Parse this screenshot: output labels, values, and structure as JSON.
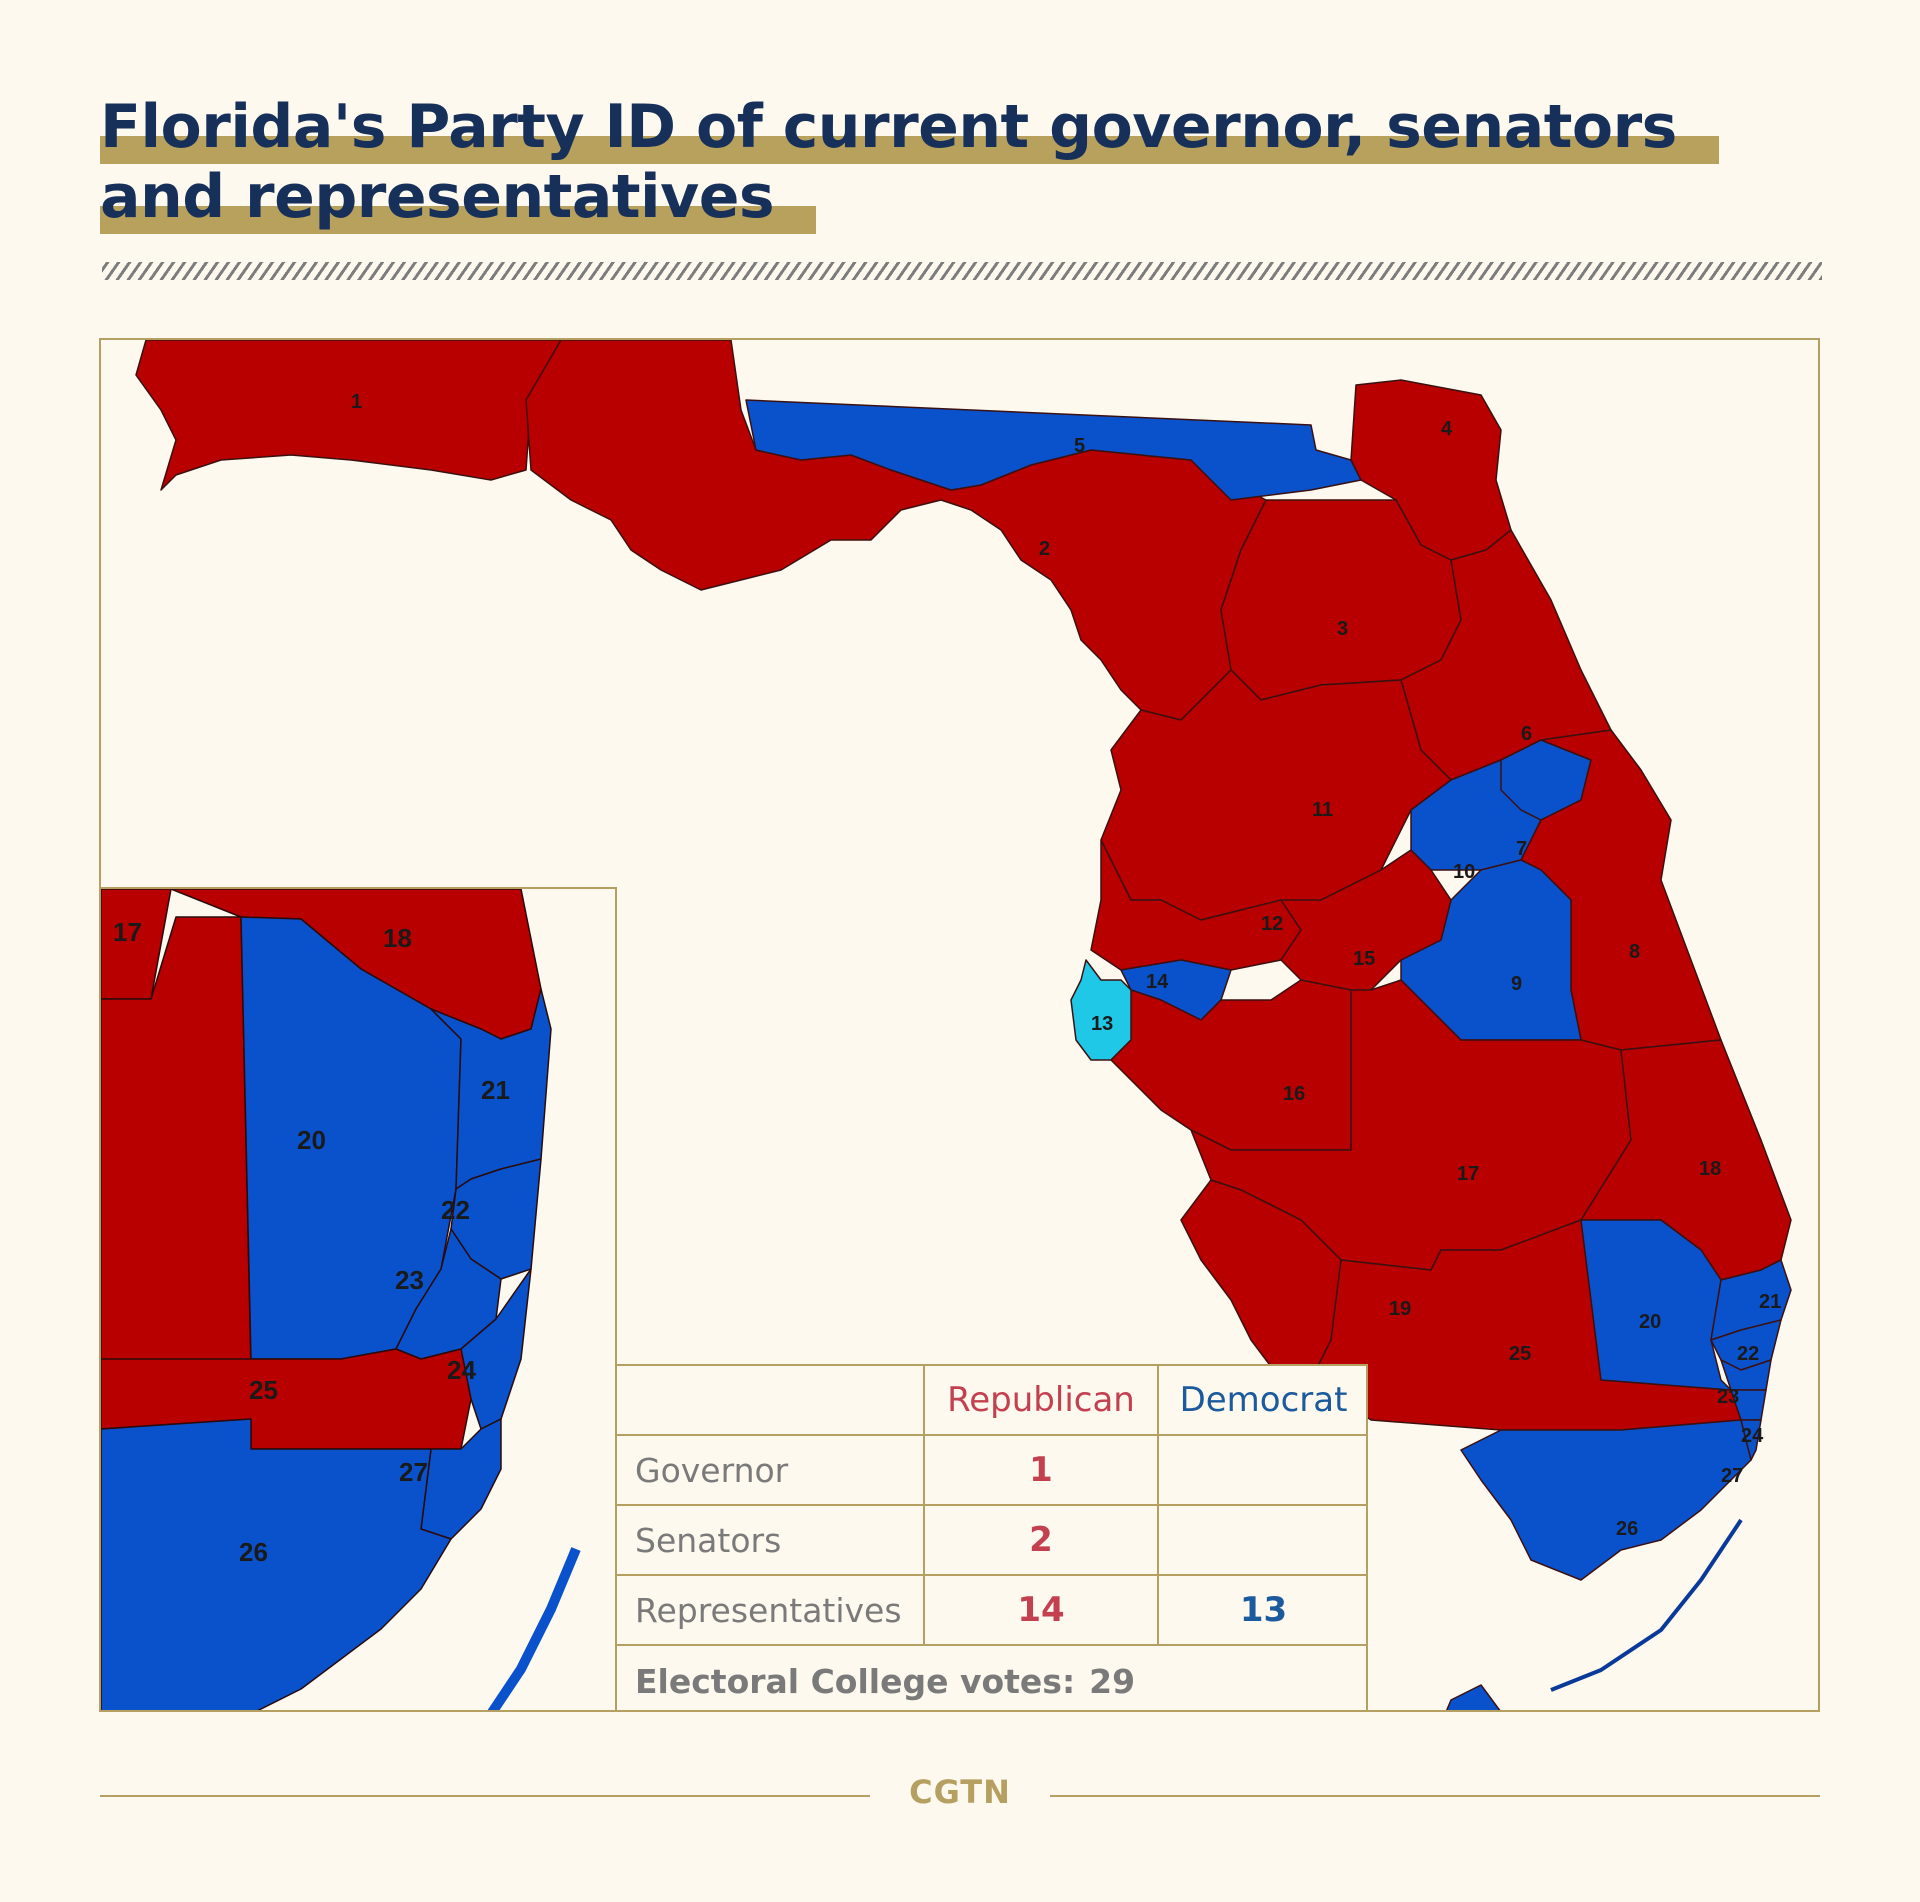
{
  "title": {
    "line1": "Florida's Party ID of current governor, senators",
    "line2": "and representatives"
  },
  "colors": {
    "republican": "#b80000",
    "democrat": "#0a52cc",
    "tossup": "#1ec8e6",
    "accent": "#b5a062",
    "title": "#16305a"
  },
  "map": {
    "districts": [
      {
        "id": "1",
        "party": "Republican"
      },
      {
        "id": "2",
        "party": "Republican"
      },
      {
        "id": "3",
        "party": "Republican"
      },
      {
        "id": "4",
        "party": "Republican"
      },
      {
        "id": "5",
        "party": "Democrat"
      },
      {
        "id": "6",
        "party": "Republican"
      },
      {
        "id": "7",
        "party": "Democrat"
      },
      {
        "id": "8",
        "party": "Republican"
      },
      {
        "id": "9",
        "party": "Democrat"
      },
      {
        "id": "10",
        "party": "Democrat"
      },
      {
        "id": "11",
        "party": "Republican"
      },
      {
        "id": "12",
        "party": "Republican"
      },
      {
        "id": "13",
        "party": "Democrat"
      },
      {
        "id": "14",
        "party": "Democrat"
      },
      {
        "id": "15",
        "party": "Republican"
      },
      {
        "id": "16",
        "party": "Republican"
      },
      {
        "id": "17",
        "party": "Republican"
      },
      {
        "id": "18",
        "party": "Republican"
      },
      {
        "id": "19",
        "party": "Republican"
      },
      {
        "id": "20",
        "party": "Democrat"
      },
      {
        "id": "21",
        "party": "Democrat"
      },
      {
        "id": "22",
        "party": "Democrat"
      },
      {
        "id": "23",
        "party": "Democrat"
      },
      {
        "id": "24",
        "party": "Democrat"
      },
      {
        "id": "25",
        "party": "Republican"
      },
      {
        "id": "26",
        "party": "Democrat"
      },
      {
        "id": "27",
        "party": "Democrat"
      }
    ],
    "inset_labels": [
      "17",
      "18",
      "20",
      "21",
      "22",
      "23",
      "24",
      "25",
      "26",
      "27"
    ]
  },
  "table": {
    "headers": {
      "republican": "Republican",
      "democrat": "Democrat"
    },
    "rows": [
      {
        "label": "Governor",
        "republican": "1",
        "democrat": ""
      },
      {
        "label": "Senators",
        "republican": "2",
        "democrat": ""
      },
      {
        "label": "Representatives",
        "republican": "14",
        "democrat": "13"
      }
    ],
    "electoral_label": "Electoral College votes:",
    "electoral_value": "29"
  },
  "footer": {
    "logo": "CGTN"
  }
}
